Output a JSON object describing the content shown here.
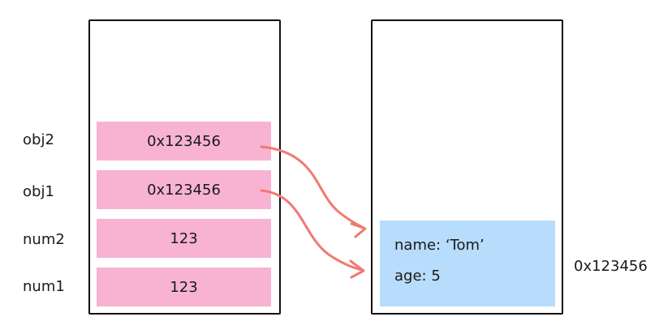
{
  "stack": {
    "rows": [
      {
        "name": "obj2",
        "value": "0x123456"
      },
      {
        "name": "obj1",
        "value": "0x123456"
      },
      {
        "name": "num2",
        "value": "123"
      },
      {
        "name": "num1",
        "value": "123"
      }
    ]
  },
  "heap": {
    "object": {
      "name_line": "name: ‘Tom’",
      "age_line": "age: 5"
    },
    "address_label": "0x123456"
  },
  "colors": {
    "stack_cell": "#f7b3d1",
    "heap_object": "#b8dcfb",
    "arrow": "#f07a72",
    "border": "#111111"
  }
}
